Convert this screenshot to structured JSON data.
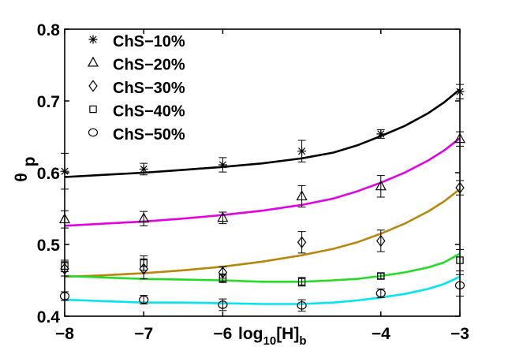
{
  "chart_data": {
    "type": "line",
    "title": "",
    "xlabel": "log",
    "xlabel_sub": "10",
    "xlabel_suffix": "[H]",
    "xlabel_suffix_sub": "b",
    "ylabel": "θ",
    "ylabel_sub": "p",
    "xlim": [
      -8,
      -3
    ],
    "ylim": [
      0.4,
      0.8
    ],
    "xticks": [
      -8,
      -7,
      -6,
      -4,
      -3
    ],
    "xtick_labels": [
      "−8",
      "−7",
      "−6",
      "−4",
      "−3"
    ],
    "yticks": [
      0.4,
      0.5,
      0.6,
      0.7,
      0.8
    ],
    "ytick_labels": [
      "0.4",
      "0.5",
      "0.6",
      "0.7",
      "0.8"
    ],
    "legend_position": "top-left",
    "series": [
      {
        "name": "ChS−10%",
        "marker": "star",
        "line_color": "#000000",
        "points": [
          {
            "x": -8,
            "y": 0.602,
            "err": 0.025
          },
          {
            "x": -7,
            "y": 0.605,
            "err": 0.008
          },
          {
            "x": -6,
            "y": 0.611,
            "err": 0.01
          },
          {
            "x": -5,
            "y": 0.63,
            "err": 0.015
          },
          {
            "x": -4,
            "y": 0.654,
            "err": 0.006
          },
          {
            "x": -3,
            "y": 0.713,
            "err": 0.01
          }
        ],
        "fit_x": [
          -8,
          -7.5,
          -7,
          -6.5,
          -6,
          -5.5,
          -5,
          -4.6,
          -4.3,
          -4,
          -3.7,
          -3.4,
          -3.2,
          -3
        ],
        "fit_y": [
          0.594,
          0.597,
          0.6,
          0.604,
          0.608,
          0.613,
          0.62,
          0.628,
          0.638,
          0.651,
          0.665,
          0.683,
          0.698,
          0.716
        ]
      },
      {
        "name": "ChS−20%",
        "marker": "triangle",
        "line_color": "#e400e4",
        "points": [
          {
            "x": -8,
            "y": 0.535,
            "err": 0.012
          },
          {
            "x": -7,
            "y": 0.536,
            "err": 0.01
          },
          {
            "x": -6,
            "y": 0.537,
            "err": 0.008
          },
          {
            "x": -5,
            "y": 0.567,
            "err": 0.015
          },
          {
            "x": -4,
            "y": 0.581,
            "err": 0.015
          },
          {
            "x": -3,
            "y": 0.647,
            "err": 0.01
          }
        ],
        "fit_x": [
          -8,
          -7.5,
          -7,
          -6.5,
          -6,
          -5.5,
          -5,
          -4.6,
          -4.3,
          -4,
          -3.7,
          -3.4,
          -3.2,
          -3
        ],
        "fit_y": [
          0.526,
          0.529,
          0.532,
          0.536,
          0.541,
          0.547,
          0.555,
          0.564,
          0.574,
          0.586,
          0.6,
          0.617,
          0.631,
          0.648
        ]
      },
      {
        "name": "ChS−30%",
        "marker": "diamond",
        "line_color": "#b8860b",
        "points": [
          {
            "x": -8,
            "y": 0.466,
            "err": 0.01
          },
          {
            "x": -7,
            "y": 0.466,
            "err": 0.014
          },
          {
            "x": -6,
            "y": 0.461,
            "err": 0.008
          },
          {
            "x": -5,
            "y": 0.503,
            "err": 0.015
          },
          {
            "x": -4,
            "y": 0.505,
            "err": 0.015
          },
          {
            "x": -3,
            "y": 0.579,
            "err": 0.01
          }
        ],
        "fit_x": [
          -8,
          -7.5,
          -7,
          -6.5,
          -6,
          -5.5,
          -5,
          -4.6,
          -4.3,
          -4,
          -3.7,
          -3.4,
          -3.2,
          -3
        ],
        "fit_y": [
          0.455,
          0.457,
          0.46,
          0.464,
          0.469,
          0.476,
          0.485,
          0.494,
          0.503,
          0.515,
          0.529,
          0.546,
          0.56,
          0.577
        ]
      },
      {
        "name": "ChS−40%",
        "marker": "square",
        "line_color": "#22dd22",
        "points": [
          {
            "x": -8,
            "y": 0.47,
            "err": 0.008
          },
          {
            "x": -7,
            "y": 0.474,
            "err": 0.01
          },
          {
            "x": -6,
            "y": 0.453,
            "err": 0.006
          },
          {
            "x": -5,
            "y": 0.448,
            "err": 0.006
          },
          {
            "x": -4,
            "y": 0.456,
            "err": 0.004
          },
          {
            "x": -3,
            "y": 0.478,
            "err": 0.015
          }
        ],
        "fit_x": [
          -8,
          -7.5,
          -7,
          -6.5,
          -6,
          -5.5,
          -5,
          -4.6,
          -4.3,
          -4,
          -3.7,
          -3.4,
          -3.2,
          -3
        ],
        "fit_y": [
          0.456,
          0.454,
          0.452,
          0.451,
          0.45,
          0.448,
          0.448,
          0.45,
          0.452,
          0.456,
          0.461,
          0.468,
          0.475,
          0.487
        ]
      },
      {
        "name": "ChS−50%",
        "marker": "circle",
        "line_color": "#00e5ee",
        "points": [
          {
            "x": -8,
            "y": 0.428,
            "err": 0.006
          },
          {
            "x": -7,
            "y": 0.423,
            "err": 0.006
          },
          {
            "x": -6,
            "y": 0.416,
            "err": 0.008
          },
          {
            "x": -5,
            "y": 0.415,
            "err": 0.008
          },
          {
            "x": -4,
            "y": 0.432,
            "err": 0.006
          },
          {
            "x": -3,
            "y": 0.443,
            "err": 0.015
          }
        ],
        "fit_x": [
          -8,
          -7.5,
          -7,
          -6.5,
          -6,
          -5.5,
          -5,
          -4.6,
          -4.3,
          -4,
          -3.7,
          -3.4,
          -3.2,
          -3
        ],
        "fit_y": [
          0.423,
          0.421,
          0.419,
          0.419,
          0.418,
          0.417,
          0.417,
          0.419,
          0.422,
          0.426,
          0.431,
          0.438,
          0.445,
          0.455
        ]
      }
    ]
  }
}
